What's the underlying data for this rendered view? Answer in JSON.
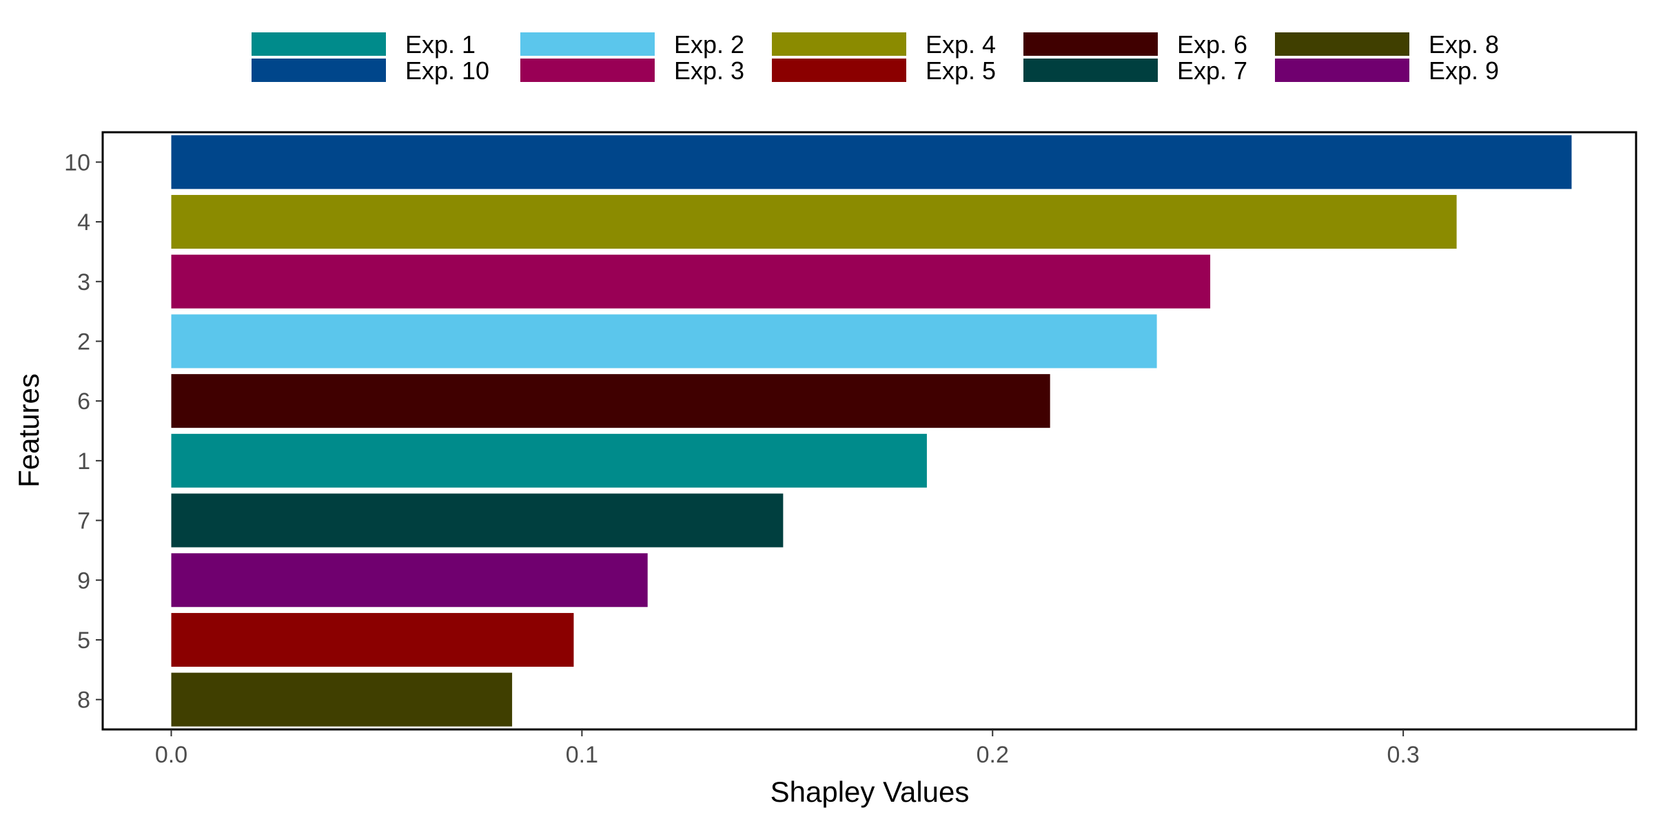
{
  "chart_data": {
    "type": "bar",
    "orientation": "horizontal",
    "xlabel": "Shapley Values",
    "ylabel": "Features",
    "xlim": [
      -0.0167,
      0.3567
    ],
    "xticks": [
      0.0,
      0.1,
      0.2,
      0.3
    ],
    "xtick_labels": [
      "0.0",
      "0.1",
      "0.2",
      "0.3"
    ],
    "grid": false,
    "legend_position": "top",
    "categories": [
      "10",
      "4",
      "3",
      "2",
      "6",
      "1",
      "7",
      "9",
      "5",
      "8"
    ],
    "values": [
      0.341,
      0.313,
      0.253,
      0.24,
      0.214,
      0.184,
      0.149,
      0.116,
      0.098,
      0.083
    ],
    "bar_series": [
      "Exp. 10",
      "Exp. 4",
      "Exp. 3",
      "Exp. 2",
      "Exp. 6",
      "Exp. 1",
      "Exp. 7",
      "Exp. 9",
      "Exp. 5",
      "Exp. 8"
    ],
    "legend": [
      {
        "label": "Exp. 1",
        "color": "#008B8B"
      },
      {
        "label": "Exp. 10",
        "color": "#00468B"
      },
      {
        "label": "Exp. 2",
        "color": "#5BC6EC"
      },
      {
        "label": "Exp. 3",
        "color": "#990055"
      },
      {
        "label": "Exp. 4",
        "color": "#8B8B00"
      },
      {
        "label": "Exp. 5",
        "color": "#8B0000"
      },
      {
        "label": "Exp. 6",
        "color": "#400000"
      },
      {
        "label": "Exp. 7",
        "color": "#003F3F"
      },
      {
        "label": "Exp. 8",
        "color": "#403F00"
      },
      {
        "label": "Exp. 9",
        "color": "#70006F"
      }
    ]
  }
}
